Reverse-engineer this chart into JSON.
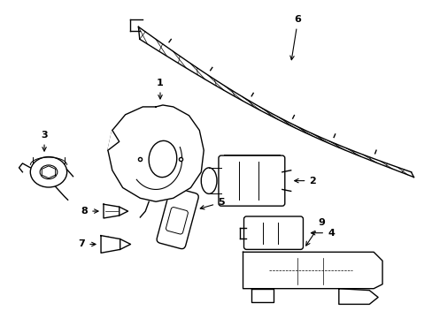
{
  "background_color": "#ffffff",
  "line_color": "#000000",
  "line_width": 1.0,
  "label_fontsize": 8,
  "fig_width": 4.89,
  "fig_height": 3.6,
  "dpi": 100
}
